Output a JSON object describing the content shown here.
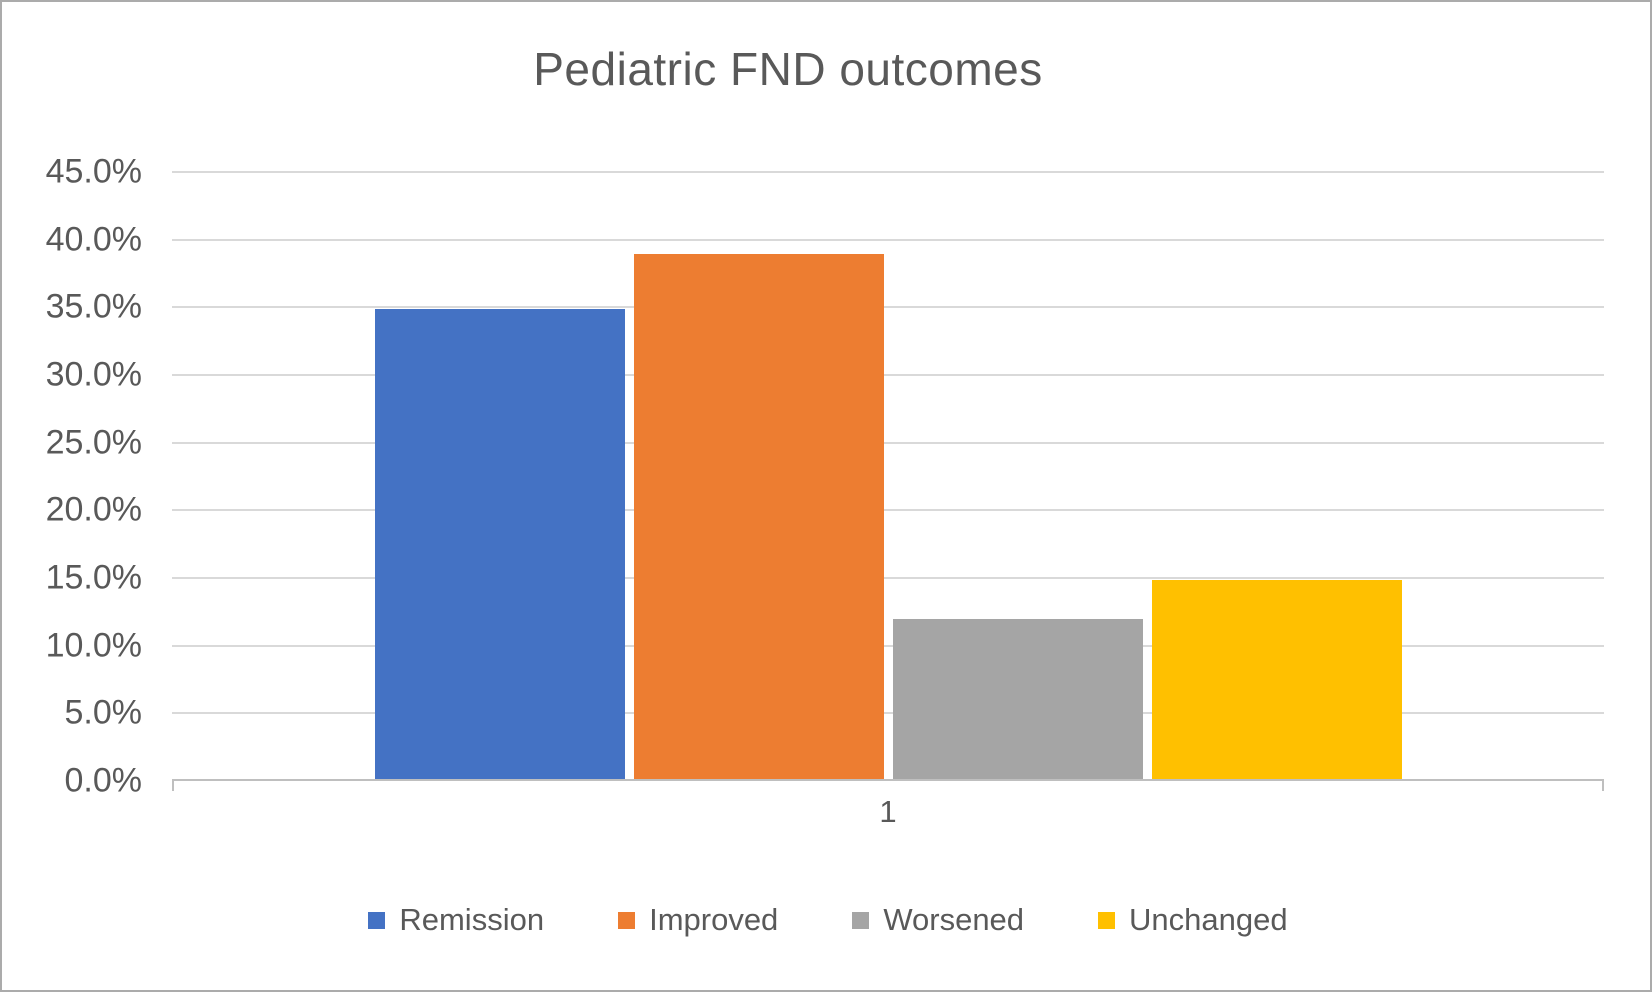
{
  "chart_data": {
    "type": "bar",
    "title": "Pediatric FND outcomes",
    "categories": [
      "1"
    ],
    "series": [
      {
        "name": "Remission",
        "value_pct": 34.7,
        "color": "#4472C4"
      },
      {
        "name": "Improved",
        "value_pct": 38.8,
        "color": "#ED7D31"
      },
      {
        "name": "Worsened",
        "value_pct": 11.8,
        "color": "#A5A5A5"
      },
      {
        "name": "Unchanged",
        "value_pct": 14.7,
        "color": "#FFC000"
      }
    ],
    "xlabel": "",
    "ylabel": "",
    "ylim": [
      0,
      45
    ],
    "y_tick_step": 5,
    "y_tick_labels": [
      "0.0%",
      "5.0%",
      "10.0%",
      "15.0%",
      "20.0%",
      "25.0%",
      "30.0%",
      "35.0%",
      "40.0%",
      "45.0%"
    ],
    "grid": true,
    "legend_position": "bottom"
  },
  "colors": {
    "text": "#595959",
    "gridline": "#d9d9d9",
    "axis_line": "#bfbfbf",
    "frame_border": "#ababab",
    "background": "#ffffff"
  }
}
